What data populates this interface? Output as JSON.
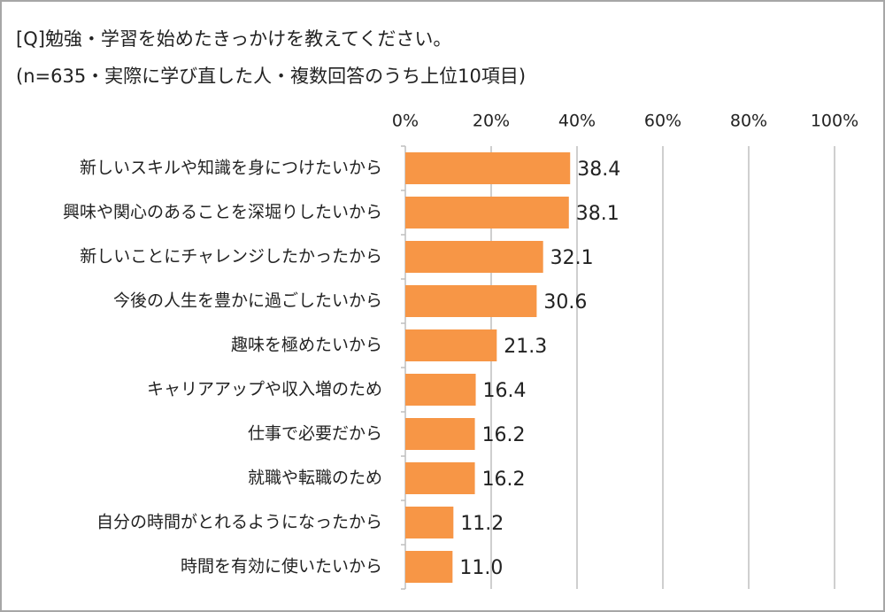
{
  "chart_data": {
    "type": "barh",
    "title": "[Q]勉強・学習を始めたきっかけを教えてください。",
    "subtitle": "(n=635・実際に学び直した人・複数回答のうち上位10項目)",
    "categories": [
      "新しいスキルや知識を身につけたいから",
      "興味や関心のあることを深堀りしたいから",
      "新しいことにチャレンジしたかったから",
      "今後の人生を豊かに過ごしたいから",
      "趣味を極めたいから",
      "キャリアアップや収入増のため",
      "仕事で必要だから",
      "就職や転職のため",
      "自分の時間がとれるようになったから",
      "時間を有効に使いたいから"
    ],
    "values": [
      38.4,
      38.1,
      32.1,
      30.6,
      21.3,
      16.4,
      16.2,
      16.2,
      11.2,
      11.0
    ],
    "value_labels": [
      "38.4",
      "38.1",
      "32.1",
      "30.6",
      "21.3",
      "16.4",
      "16.2",
      "16.2",
      "11.2",
      "11.0"
    ],
    "color": "#f79646",
    "xlim": [
      0,
      100
    ],
    "xticks": [
      {
        "value": 0,
        "label": "0%"
      },
      {
        "value": 20,
        "label": "20%"
      },
      {
        "value": 40,
        "label": "40%"
      },
      {
        "value": 60,
        "label": "60%"
      },
      {
        "value": 80,
        "label": "80%"
      },
      {
        "value": 100,
        "label": "100%"
      }
    ],
    "grid": true
  }
}
